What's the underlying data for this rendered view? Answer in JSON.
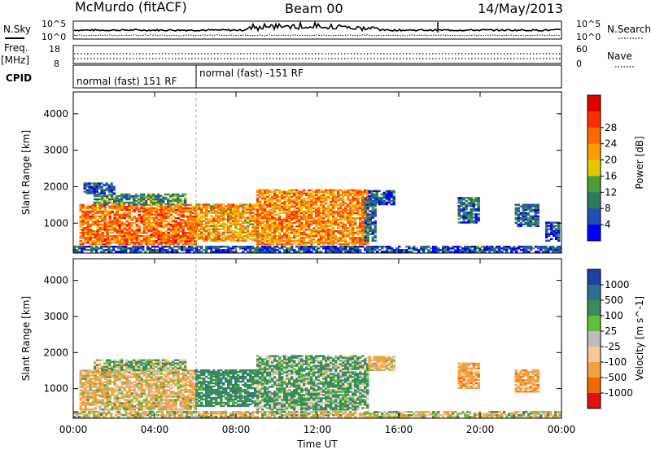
{
  "header": {
    "station": "McMurdo (fitACF)",
    "beam": "Beam 00",
    "date": "14/May/2013"
  },
  "meta_panels": {
    "nsky_label": "N.Sky",
    "nsky_ticks": [
      "10^5",
      "10^0"
    ],
    "nsearch_label": "N.Search",
    "nsearch_ticks": [
      "10^5",
      "10^0"
    ],
    "freq_label": "Freq.",
    "freq_unit": "[MHz]",
    "freq_ticks": [
      "18",
      "8"
    ],
    "nave_label": "Nave",
    "nave_ticks": [
      "60",
      "0"
    ],
    "cpid_label": "CPID",
    "cpid_segments": [
      "normal (fast) 151 RF",
      "normal (fast) -151 RF"
    ]
  },
  "chart_data": [
    {
      "type": "heatmap",
      "title": "",
      "xlabel": "Time UT",
      "ylabel": "Slant Range [km]",
      "x_ticks": [
        "00:00",
        "04:00",
        "08:00",
        "12:00",
        "16:00",
        "20:00",
        "00:00"
      ],
      "y_ticks": [
        "1000",
        "2000",
        "3000",
        "4000"
      ],
      "ylim": [
        180,
        4600
      ],
      "colorbar": {
        "label": "Power [dB]",
        "ticks": [
          "4",
          "8",
          "12",
          "16",
          "20",
          "24",
          "28"
        ],
        "colors": [
          "#0000ff",
          "#1e4fb0",
          "#2f7a5a",
          "#4a9d3f",
          "#e6c800",
          "#ff9a00",
          "#ff6a00",
          "#ff3000",
          "#e00000"
        ]
      },
      "regions": [
        {
          "t0": 0.3,
          "t1": 6.0,
          "r0": 400,
          "r1": 1500,
          "v": 28
        },
        {
          "t0": 1.0,
          "t1": 5.5,
          "r0": 1500,
          "r1": 1800,
          "v": 14
        },
        {
          "t0": 0.5,
          "t1": 2.0,
          "r0": 1800,
          "r1": 2100,
          "v": 8
        },
        {
          "t0": 6.0,
          "t1": 9.0,
          "r0": 500,
          "r1": 1500,
          "v": 24
        },
        {
          "t0": 9.0,
          "t1": 14.5,
          "r0": 400,
          "r1": 1900,
          "v": 26
        },
        {
          "t0": 14.3,
          "t1": 14.8,
          "r0": 500,
          "r1": 1700,
          "v": 10
        },
        {
          "t0": 14.5,
          "t1": 15.8,
          "r0": 1500,
          "r1": 1900,
          "v": 8
        },
        {
          "t0": 18.9,
          "t1": 19.9,
          "r0": 1000,
          "r1": 1700,
          "v": 10
        },
        {
          "t0": 21.7,
          "t1": 22.9,
          "r0": 900,
          "r1": 1500,
          "v": 10
        },
        {
          "t0": 23.2,
          "t1": 23.9,
          "r0": 500,
          "r1": 1000,
          "v": 8
        },
        {
          "t0": 0.0,
          "t1": 24.0,
          "r0": 200,
          "r1": 350,
          "v": 8
        }
      ]
    },
    {
      "type": "heatmap",
      "title": "",
      "xlabel": "Time UT",
      "ylabel": "Slant Range [km]",
      "x_ticks": [
        "00:00",
        "04:00",
        "08:00",
        "12:00",
        "16:00",
        "20:00",
        "00:00"
      ],
      "y_ticks": [
        "1000",
        "2000",
        "3000",
        "4000"
      ],
      "ylim": [
        180,
        4600
      ],
      "colorbar": {
        "label": "Velocity [m s^-1]",
        "ticks": [
          "1000",
          "500",
          "100",
          "25",
          "-25",
          "-100",
          "-500",
          "-1000"
        ],
        "colors": [
          "#2040a0",
          "#2e6e8e",
          "#3a8a5a",
          "#5fbf3a",
          "#bdbdbd",
          "#f5c89a",
          "#f3a040",
          "#ef6a00",
          "#e01010"
        ]
      },
      "regions": [
        {
          "t0": 0.3,
          "t1": 6.0,
          "r0": 400,
          "r1": 1500,
          "v": -120
        },
        {
          "t0": 1.0,
          "t1": 5.5,
          "r0": 1500,
          "r1": 1800,
          "v": 60
        },
        {
          "t0": 6.0,
          "t1": 9.0,
          "r0": 500,
          "r1": 1500,
          "v": 300
        },
        {
          "t0": 9.0,
          "t1": 14.5,
          "r0": 400,
          "r1": 1900,
          "v": 150
        },
        {
          "t0": 14.5,
          "t1": 15.8,
          "r0": 1500,
          "r1": 1900,
          "v": -200
        },
        {
          "t0": 18.9,
          "t1": 19.9,
          "r0": 1000,
          "r1": 1700,
          "v": -300
        },
        {
          "t0": 21.7,
          "t1": 22.9,
          "r0": 900,
          "r1": 1500,
          "v": -300
        },
        {
          "t0": 0.0,
          "t1": 24.0,
          "r0": 200,
          "r1": 350,
          "v": -60
        }
      ]
    }
  ]
}
